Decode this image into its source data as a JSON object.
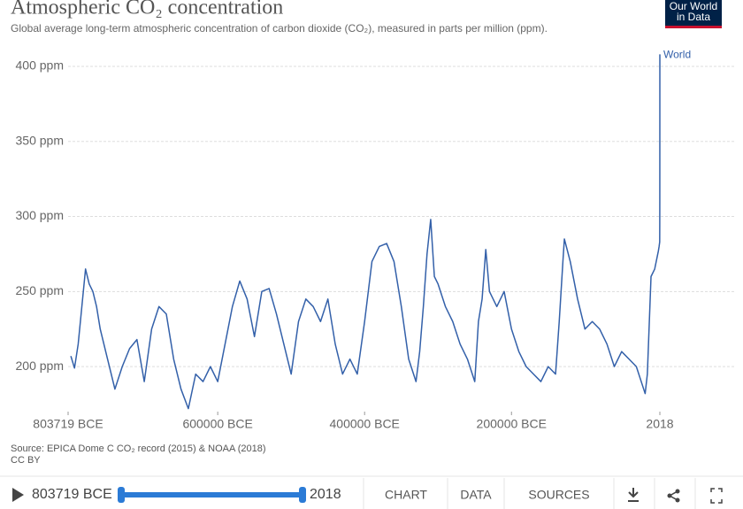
{
  "chart_data": {
    "type": "line",
    "title": "Atmospheric CO₂ concentration",
    "subtitle": "Global average long-term atmospheric concentration of carbon dioxide (CO₂), measured in parts per million (ppm).",
    "xlim": [
      -803719,
      2018
    ],
    "xticks": [
      {
        "value": -803719,
        "label": "803719 BCE"
      },
      {
        "value": -600000,
        "label": "600000 BCE"
      },
      {
        "value": -400000,
        "label": "400000 BCE"
      },
      {
        "value": -200000,
        "label": "200000 BCE"
      },
      2018
    ],
    "ylim": [
      170,
      410
    ],
    "yticks": [
      {
        "value": 200,
        "label": "200 ppm"
      },
      {
        "value": 250,
        "label": "250 ppm"
      },
      {
        "value": 300,
        "label": "300 ppm"
      },
      {
        "value": 350,
        "label": "350 ppm"
      },
      {
        "value": 400,
        "label": "400 ppm"
      }
    ],
    "grid": true,
    "series": [
      {
        "name": "World",
        "color": "#3360a9",
        "x": [
          -800000,
          -795000,
          -790000,
          -785000,
          -780000,
          -775000,
          -770000,
          -765000,
          -760000,
          -750000,
          -745000,
          -740000,
          -730000,
          -720000,
          -710000,
          -700000,
          -690000,
          -680000,
          -670000,
          -660000,
          -650000,
          -640000,
          -630000,
          -620000,
          -610000,
          -600000,
          -590000,
          -580000,
          -570000,
          -560000,
          -550000,
          -540000,
          -530000,
          -520000,
          -510000,
          -500000,
          -490000,
          -480000,
          -470000,
          -460000,
          -450000,
          -440000,
          -430000,
          -420000,
          -410000,
          -400000,
          -390000,
          -380000,
          -370000,
          -360000,
          -350000,
          -340000,
          -330000,
          -325000,
          -320000,
          -315000,
          -310000,
          -305000,
          -300000,
          -290000,
          -280000,
          -270000,
          -260000,
          -250000,
          -245000,
          -240000,
          -235000,
          -230000,
          -220000,
          -210000,
          -200000,
          -190000,
          -180000,
          -170000,
          -160000,
          -150000,
          -140000,
          -135000,
          -130000,
          -128000,
          -120000,
          -110000,
          -100000,
          -90000,
          -80000,
          -70000,
          -60000,
          -50000,
          -40000,
          -30000,
          -20000,
          -18000,
          -15000,
          -10000,
          -5000,
          0,
          1000,
          1800,
          1900,
          1950,
          1980,
          2000,
          2018
        ],
        "values": [
          207,
          199,
          215,
          240,
          265,
          255,
          250,
          240,
          225,
          205,
          195,
          185,
          200,
          212,
          218,
          190,
          225,
          240,
          235,
          205,
          185,
          172,
          195,
          190,
          200,
          190,
          215,
          240,
          257,
          245,
          220,
          250,
          252,
          235,
          215,
          195,
          230,
          245,
          240,
          230,
          245,
          215,
          195,
          205,
          195,
          230,
          270,
          280,
          282,
          270,
          240,
          205,
          190,
          210,
          240,
          275,
          298,
          260,
          255,
          240,
          230,
          215,
          205,
          190,
          230,
          245,
          278,
          250,
          240,
          250,
          225,
          210,
          200,
          195,
          190,
          200,
          195,
          230,
          270,
          285,
          270,
          245,
          225,
          230,
          225,
          215,
          200,
          210,
          205,
          200,
          185,
          182,
          195,
          260,
          265,
          277,
          280,
          283,
          296,
          311,
          339,
          369,
          408
        ]
      }
    ]
  },
  "logo": {
    "line1": "Our World",
    "line2": "in Data"
  },
  "source": "Source: EPICA Dome C CO₂ record (2015) & NOAA (2018)",
  "license": "CC BY",
  "controls": {
    "start": "803719 BCE",
    "end": "2018",
    "tabs": [
      "CHART",
      "DATA",
      "SOURCES"
    ]
  }
}
